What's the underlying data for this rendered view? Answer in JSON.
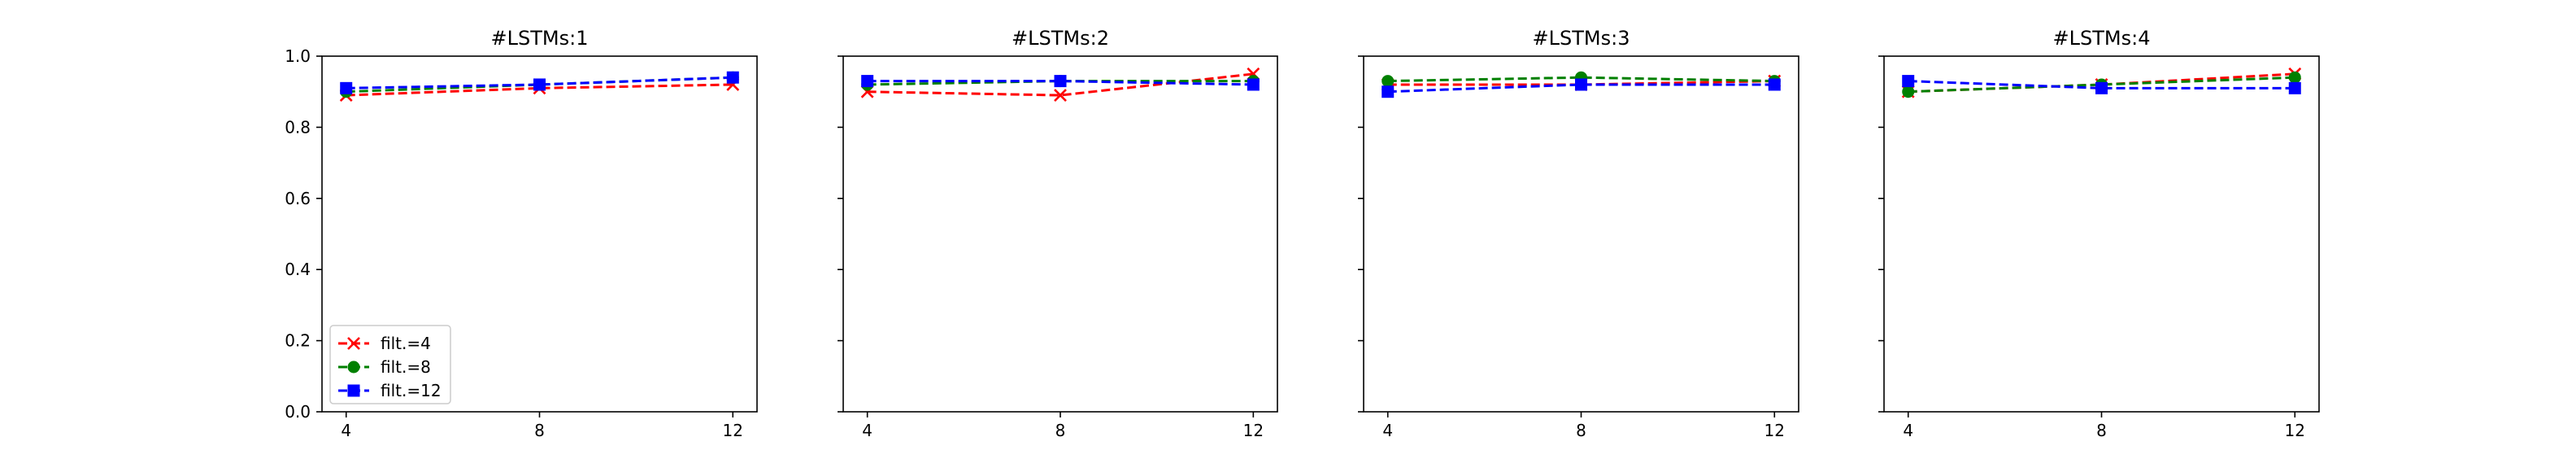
{
  "chart_data": [
    {
      "type": "line",
      "title": "#LSTMs:1",
      "xlabel": "",
      "ylabel": "",
      "x": [
        4,
        8,
        12
      ],
      "xticks": [
        "4",
        "8",
        "12"
      ],
      "xlim": [
        3.5,
        12.5
      ],
      "ylim": [
        0.0,
        1.0
      ],
      "yticks": [
        "0.0",
        "0.2",
        "0.4",
        "0.6",
        "0.8",
        "1.0"
      ],
      "show_ytick_labels": true,
      "grid": false,
      "legend": "lower-left",
      "series": [
        {
          "name": "filt.=4",
          "color": "#ff0000",
          "marker": "x",
          "values": [
            0.89,
            0.91,
            0.92
          ]
        },
        {
          "name": "filt.=8",
          "color": "#008000",
          "marker": "circle",
          "values": [
            0.9,
            0.92,
            0.94
          ]
        },
        {
          "name": "filt.=12",
          "color": "#0000ff",
          "marker": "square",
          "values": [
            0.91,
            0.92,
            0.94
          ]
        }
      ]
    },
    {
      "type": "line",
      "title": "#LSTMs:2",
      "xlabel": "",
      "ylabel": "",
      "x": [
        4,
        8,
        12
      ],
      "xticks": [
        "4",
        "8",
        "12"
      ],
      "xlim": [
        3.5,
        12.5
      ],
      "ylim": [
        0.0,
        1.0
      ],
      "yticks": [
        "0.0",
        "0.2",
        "0.4",
        "0.6",
        "0.8",
        "1.0"
      ],
      "show_ytick_labels": false,
      "grid": false,
      "legend": "none",
      "series": [
        {
          "name": "filt.=4",
          "color": "#ff0000",
          "marker": "x",
          "values": [
            0.9,
            0.89,
            0.95
          ]
        },
        {
          "name": "filt.=8",
          "color": "#008000",
          "marker": "circle",
          "values": [
            0.92,
            0.93,
            0.93
          ]
        },
        {
          "name": "filt.=12",
          "color": "#0000ff",
          "marker": "square",
          "values": [
            0.93,
            0.93,
            0.92
          ]
        }
      ]
    },
    {
      "type": "line",
      "title": "#LSTMs:3",
      "xlabel": "",
      "ylabel": "",
      "x": [
        4,
        8,
        12
      ],
      "xticks": [
        "4",
        "8",
        "12"
      ],
      "xlim": [
        3.5,
        12.5
      ],
      "ylim": [
        0.0,
        1.0
      ],
      "yticks": [
        "0.0",
        "0.2",
        "0.4",
        "0.6",
        "0.8",
        "1.0"
      ],
      "show_ytick_labels": false,
      "grid": false,
      "legend": "none",
      "series": [
        {
          "name": "filt.=4",
          "color": "#ff0000",
          "marker": "x",
          "values": [
            0.92,
            0.92,
            0.93
          ]
        },
        {
          "name": "filt.=8",
          "color": "#008000",
          "marker": "circle",
          "values": [
            0.93,
            0.94,
            0.93
          ]
        },
        {
          "name": "filt.=12",
          "color": "#0000ff",
          "marker": "square",
          "values": [
            0.9,
            0.92,
            0.92
          ]
        }
      ]
    },
    {
      "type": "line",
      "title": "#LSTMs:4",
      "xlabel": "",
      "ylabel": "",
      "x": [
        4,
        8,
        12
      ],
      "xticks": [
        "4",
        "8",
        "12"
      ],
      "xlim": [
        3.5,
        12.5
      ],
      "ylim": [
        0.0,
        1.0
      ],
      "yticks": [
        "0.0",
        "0.2",
        "0.4",
        "0.6",
        "0.8",
        "1.0"
      ],
      "show_ytick_labels": false,
      "grid": false,
      "legend": "none",
      "series": [
        {
          "name": "filt.=4",
          "color": "#ff0000",
          "marker": "x",
          "values": [
            0.9,
            0.92,
            0.95
          ]
        },
        {
          "name": "filt.=8",
          "color": "#008000",
          "marker": "circle",
          "values": [
            0.9,
            0.92,
            0.94
          ]
        },
        {
          "name": "filt.=12",
          "color": "#0000ff",
          "marker": "square",
          "values": [
            0.93,
            0.91,
            0.91
          ]
        }
      ]
    }
  ]
}
